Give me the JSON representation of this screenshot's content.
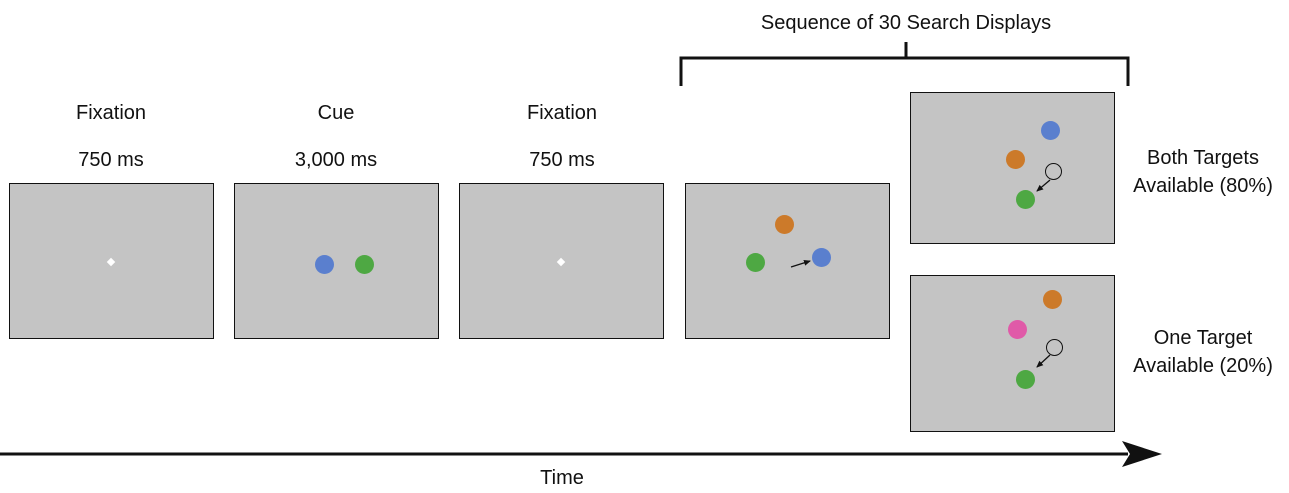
{
  "stages": [
    {
      "title": "Fixation",
      "duration": "750 ms"
    },
    {
      "title": "Cue",
      "duration": "3,000 ms"
    },
    {
      "title": "Fixation",
      "duration": "750 ms"
    }
  ],
  "sequence_label": "Sequence of 30 Search Displays",
  "conditions": [
    {
      "line1": "Both Targets",
      "line2": "Available (80%)"
    },
    {
      "line1": "One Target",
      "line2": "Available (20%)"
    }
  ],
  "time_label": "Time",
  "colors": {
    "panel": "#c4c4c4",
    "blue": "#5a7fce",
    "green": "#4ea843",
    "orange": "#cc7a2a",
    "pink": "#e05aa8",
    "fixation": "#ffffff"
  }
}
